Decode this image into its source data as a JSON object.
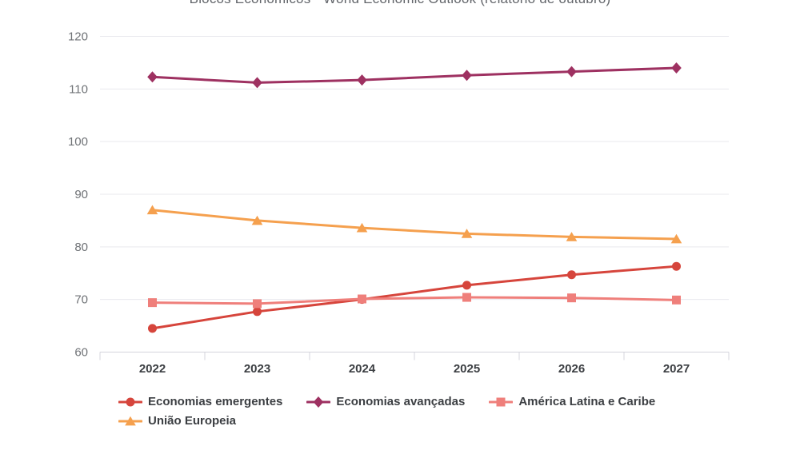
{
  "title": "Blocos Econômicos - World Economic Outlook (relatório de outubro)",
  "chart_data": {
    "type": "line",
    "title": "Blocos Econômicos - World Economic Outlook (relatório de outubro)",
    "categories": [
      "2022",
      "2023",
      "2024",
      "2025",
      "2026",
      "2027"
    ],
    "series": [
      {
        "name": "Economias emergentes",
        "marker": "circle",
        "color": "#d6453c",
        "values": [
          64.5,
          67.7,
          70.0,
          72.7,
          74.7,
          76.3
        ]
      },
      {
        "name": "Economias avançadas",
        "marker": "diamond",
        "color": "#9e3161",
        "values": [
          112.3,
          111.2,
          111.7,
          112.6,
          113.3,
          114.0
        ]
      },
      {
        "name": "América Latina e Caribe",
        "marker": "square",
        "color": "#ef7f7b",
        "values": [
          69.4,
          69.2,
          70.1,
          70.4,
          70.3,
          69.9
        ]
      },
      {
        "name": "União Europeia",
        "marker": "triangle",
        "color": "#f5a04e",
        "values": [
          87.0,
          85.0,
          83.6,
          82.5,
          81.9,
          81.5
        ]
      }
    ],
    "xlabel": "",
    "ylabel": "",
    "ylim": [
      60,
      120
    ],
    "yticks": [
      60,
      70,
      80,
      90,
      100,
      110,
      120
    ],
    "grid": true,
    "legend_position": "bottom",
    "colors": {
      "gridline": "#e9e9ee",
      "axis_line": "#d4d4dc",
      "y_tick_label": "#6f7276",
      "x_tick_label": "#3b3e42",
      "title_text": "#63666b",
      "legend_text": "#3b3e42"
    }
  }
}
